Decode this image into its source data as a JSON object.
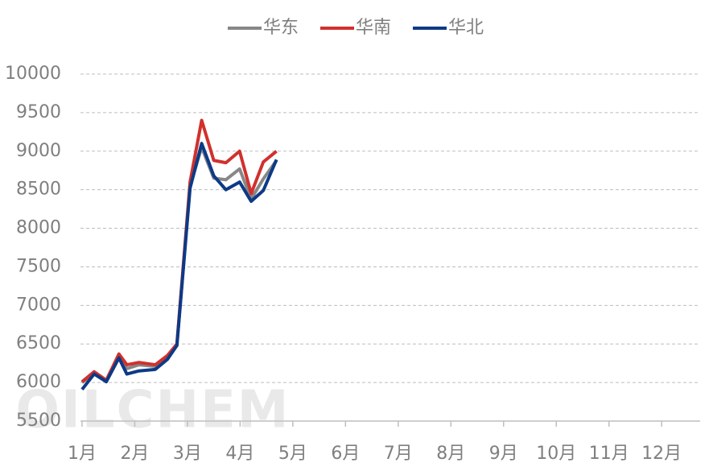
{
  "chart_data": {
    "type": "line",
    "watermark": "OILCHEM",
    "x": [
      1.0,
      1.23,
      1.46,
      1.7,
      1.85,
      2.08,
      2.39,
      2.62,
      2.8,
      3.05,
      3.27,
      3.5,
      3.73,
      3.99,
      4.21,
      4.44,
      4.69
    ],
    "series": [
      {
        "name": "华东",
        "color": "#878787",
        "values": [
          6000,
          6120,
          6020,
          6340,
          6180,
          6230,
          6210,
          6330,
          6480,
          8550,
          9050,
          8650,
          8630,
          8770,
          8380,
          8640,
          8880
        ]
      },
      {
        "name": "华南",
        "color": "#d0312d",
        "values": [
          6010,
          6140,
          6030,
          6370,
          6230,
          6260,
          6230,
          6350,
          6500,
          8600,
          9400,
          8880,
          8850,
          9000,
          8450,
          8860,
          9000
        ]
      },
      {
        "name": "华北",
        "color": "#0c3a86",
        "values": [
          5910,
          6110,
          6010,
          6320,
          6110,
          6150,
          6170,
          6300,
          6480,
          8520,
          9100,
          8680,
          8500,
          8600,
          8350,
          8490,
          8890
        ]
      }
    ],
    "xlim": [
      0.97,
      12.73
    ],
    "xticks": [
      {
        "value": 1,
        "label": "1月"
      },
      {
        "value": 2,
        "label": "2月"
      },
      {
        "value": 3,
        "label": "3月"
      },
      {
        "value": 4,
        "label": "4月"
      },
      {
        "value": 5,
        "label": "5月"
      },
      {
        "value": 6,
        "label": "6月"
      },
      {
        "value": 7,
        "label": "7月"
      },
      {
        "value": 8,
        "label": "8月"
      },
      {
        "value": 9,
        "label": "9月"
      },
      {
        "value": 10,
        "label": "10月"
      },
      {
        "value": 11,
        "label": "11月"
      },
      {
        "value": 12,
        "label": "12月"
      }
    ],
    "ylim": [
      5500,
      10000
    ],
    "yticks": [
      5500,
      6000,
      6500,
      7000,
      7500,
      8000,
      8500,
      9000,
      9500,
      10000
    ],
    "grid": true,
    "legend": "top"
  }
}
